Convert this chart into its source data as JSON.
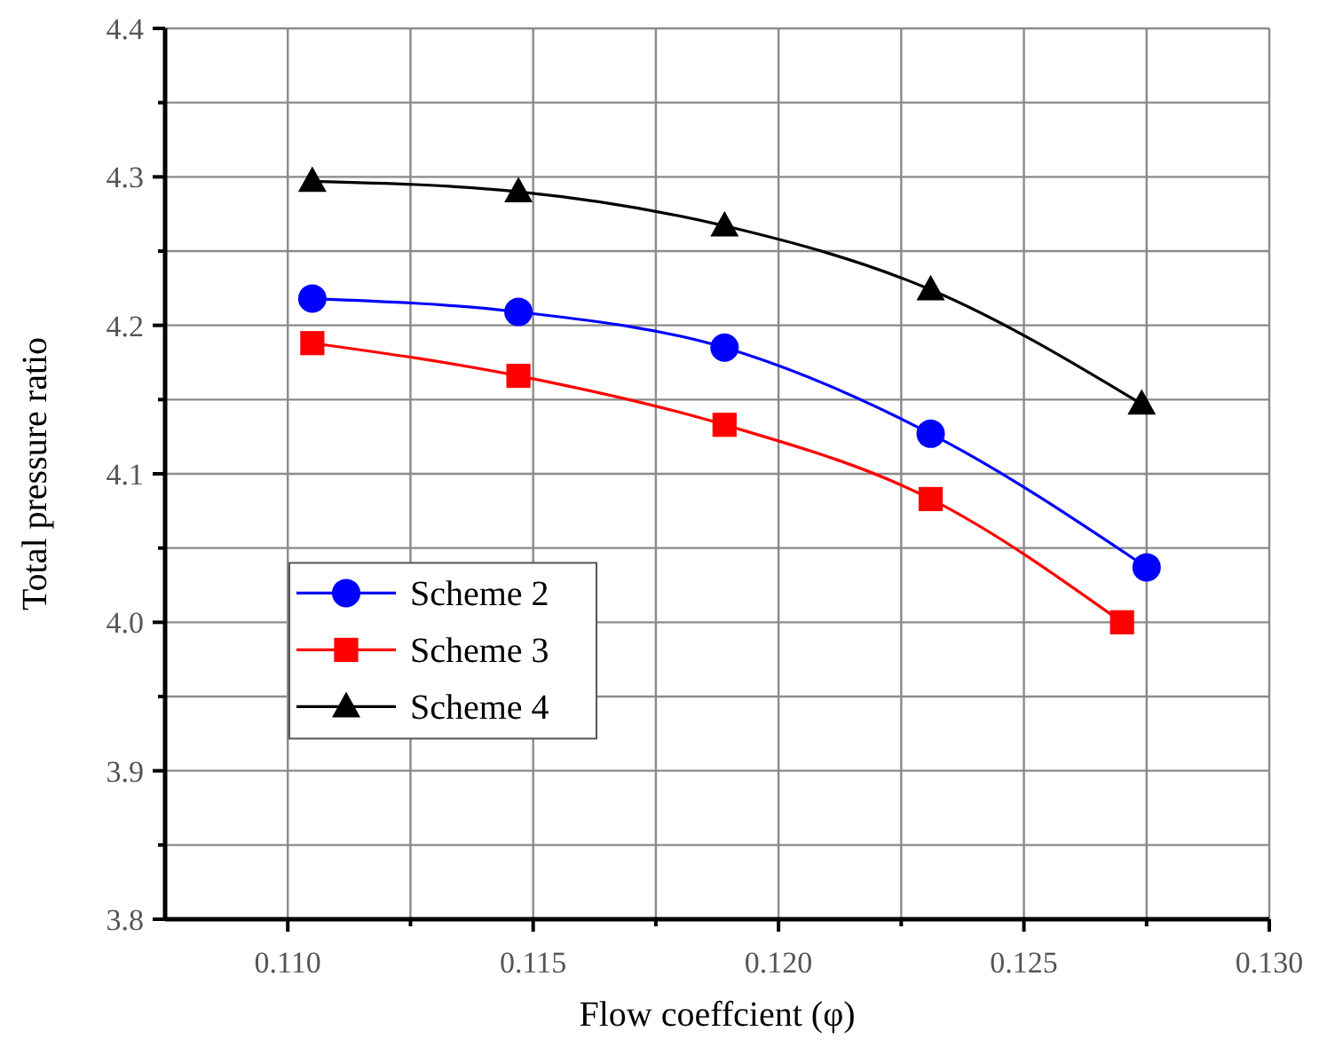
{
  "chart_data": {
    "type": "line",
    "xlabel": "Flow coeffcient (φ)",
    "ylabel": "Total pressure ratio",
    "xlim": [
      0.1075,
      0.13
    ],
    "ylim": [
      3.8,
      4.4
    ],
    "xticks": [
      {
        "value": 0.11,
        "label": "0.110"
      },
      {
        "value": 0.1125,
        "label": null
      },
      {
        "value": 0.115,
        "label": "0.115"
      },
      {
        "value": 0.1175,
        "label": null
      },
      {
        "value": 0.12,
        "label": "0.120"
      },
      {
        "value": 0.1225,
        "label": null
      },
      {
        "value": 0.125,
        "label": "0.125"
      },
      {
        "value": 0.1275,
        "label": null
      },
      {
        "value": 0.13,
        "label": "0.130"
      }
    ],
    "yticks": [
      {
        "value": 3.8,
        "label": "3.8"
      },
      {
        "value": 3.85,
        "label": null
      },
      {
        "value": 3.9,
        "label": "3.9"
      },
      {
        "value": 3.95,
        "label": null
      },
      {
        "value": 4.0,
        "label": "4.0"
      },
      {
        "value": 4.05,
        "label": null
      },
      {
        "value": 4.1,
        "label": "4.1"
      },
      {
        "value": 4.15,
        "label": null
      },
      {
        "value": 4.2,
        "label": "4.2"
      },
      {
        "value": 4.25,
        "label": null
      },
      {
        "value": 4.3,
        "label": "4.3"
      },
      {
        "value": 4.35,
        "label": null
      },
      {
        "value": 4.4,
        "label": "4.4"
      }
    ],
    "grid": true,
    "legend": "left",
    "series": [
      {
        "name": "Scheme 2",
        "color": "#0000ff",
        "marker": "circle",
        "x": [
          0.1105,
          0.1147,
          0.1189,
          0.1231,
          0.1275
        ],
        "values": [
          4.218,
          4.209,
          4.185,
          4.127,
          4.037
        ]
      },
      {
        "name": "Scheme 3",
        "color": "#ff0000",
        "marker": "square",
        "x": [
          0.1105,
          0.1147,
          0.1189,
          0.1231,
          0.127
        ],
        "values": [
          4.188,
          4.166,
          4.133,
          4.083,
          4.0
        ]
      },
      {
        "name": "Scheme 4",
        "color": "#000000",
        "marker": "triangle",
        "x": [
          0.1105,
          0.1147,
          0.1189,
          0.1231,
          0.1274
        ],
        "values": [
          4.297,
          4.29,
          4.267,
          4.224,
          4.147
        ]
      }
    ]
  }
}
